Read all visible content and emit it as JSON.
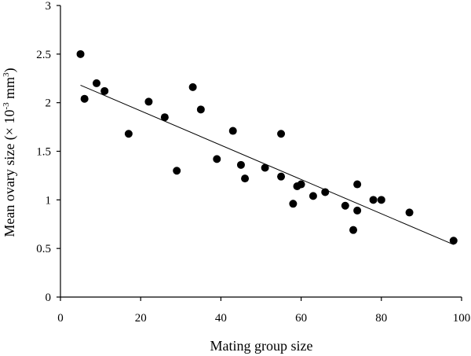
{
  "chart_data": {
    "type": "scatter",
    "xlabel": "Mating group size",
    "ylabel": {
      "text": "Mean ovary size (× 10",
      "superscript_exp": "-3",
      "unit": " mm",
      "superscript_unit": "3",
      "close": ")"
    },
    "xlim": [
      0,
      100
    ],
    "ylim": [
      0,
      3
    ],
    "xticks": [
      "0",
      "20",
      "40",
      "60",
      "80",
      "100"
    ],
    "yticks": [
      "0",
      "0.5",
      "1",
      "1.5",
      "2",
      "2.5",
      "3"
    ],
    "grid": false,
    "legend": "none",
    "trendline": {
      "x": [
        5,
        98
      ],
      "y": [
        2.18,
        0.54
      ]
    },
    "series": [
      {
        "x": [
          5,
          6,
          9,
          11,
          17,
          22,
          26,
          29,
          33,
          35,
          39,
          43,
          45,
          46,
          51,
          55,
          55,
          58,
          59,
          60,
          63,
          66,
          71,
          73,
          74,
          74,
          78,
          80,
          87,
          98
        ],
        "y": [
          2.5,
          2.04,
          2.2,
          2.12,
          1.68,
          2.01,
          1.85,
          1.3,
          2.16,
          1.93,
          1.42,
          1.71,
          1.36,
          1.22,
          1.33,
          1.68,
          1.24,
          0.96,
          1.14,
          1.16,
          1.04,
          1.08,
          0.94,
          0.69,
          0.89,
          1.16,
          1.0,
          1.0,
          0.87,
          0.58
        ]
      }
    ],
    "colors": {
      "points": "#000000",
      "axis": "#000000",
      "trendline": "#000000"
    }
  }
}
